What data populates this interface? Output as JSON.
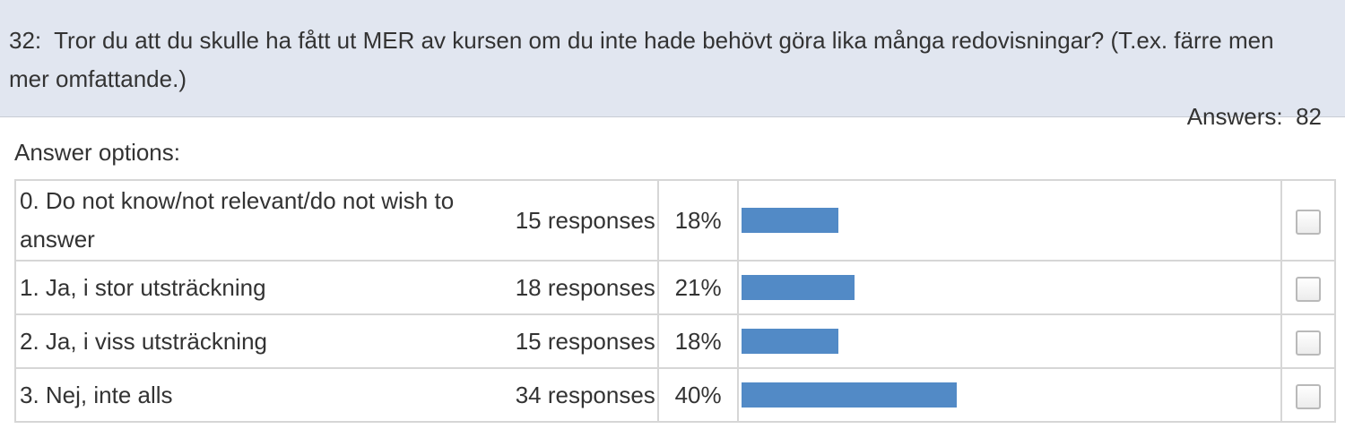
{
  "question": {
    "number": "32:",
    "text": "Tror du att du skulle ha fått ut MER av kursen om du inte hade behövt göra lika många redovisningar? (T.ex. färre men mer omfattande.)"
  },
  "answers": {
    "label": "Answers:",
    "count": "82"
  },
  "answer_options_label": "Answer options:",
  "colors": {
    "header_bg": "#e1e6f0",
    "bar": "#528ac6",
    "border": "#d6d6d6"
  },
  "chart_data": {
    "type": "bar",
    "categories": [
      "0.  Do not know/not relevant/do not wish to answer",
      "1.  Ja, i stor utsträckning",
      "2.  Ja, i viss utsträckning",
      "3.  Nej, inte alls"
    ],
    "values": [
      15,
      18,
      15,
      34
    ],
    "percent_values": [
      18,
      21,
      18,
      40
    ],
    "ylim": [
      0,
      100
    ]
  },
  "rows": [
    {
      "option": "0.  Do not know/not relevant/do not wish to answer",
      "responses": "15 responses",
      "percent": "18%"
    },
    {
      "option": "1.  Ja, i stor utsträckning",
      "responses": "18 responses",
      "percent": "21%"
    },
    {
      "option": "2.  Ja, i viss utsträckning",
      "responses": "15 responses",
      "percent": "18%"
    },
    {
      "option": "3.  Nej, inte alls",
      "responses": "34 responses",
      "percent": "40%"
    }
  ]
}
